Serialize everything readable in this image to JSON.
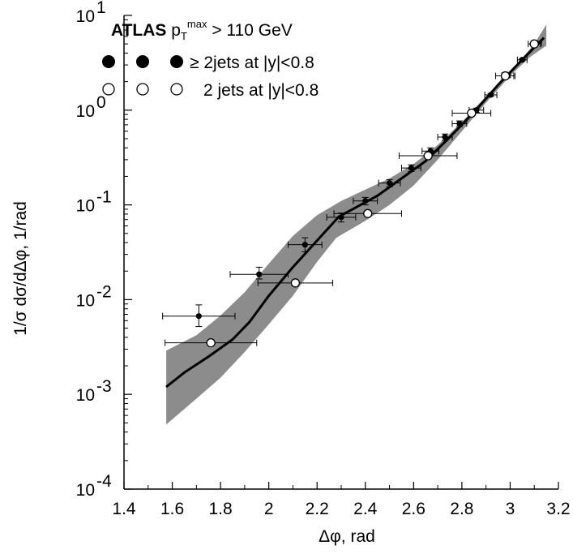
{
  "chart_data": {
    "type": "scatter",
    "x_axis": {
      "label": "Δφ, rad",
      "range": [
        1.4,
        3.2
      ],
      "ticks": [
        "1.4",
        "1.6",
        "1.8",
        "2",
        "2.2",
        "2.4",
        "2.6",
        "2.8",
        "3",
        "3.2"
      ]
    },
    "y_axis": {
      "label": "1/σ dσ/dΔφ, 1/rad",
      "scale": "log",
      "range": [
        0.0001,
        10
      ],
      "ticks": [
        {
          "base": "10",
          "exp": "1"
        },
        {
          "base": "10",
          "exp": "0"
        },
        {
          "base": "10",
          "exp": "-1"
        },
        {
          "base": "10",
          "exp": "-2"
        },
        {
          "base": "10",
          "exp": "-3"
        },
        {
          "base": "10",
          "exp": "-4"
        }
      ]
    },
    "legend": {
      "title_bold": "ATLAS",
      "title_text": "p",
      "title_sub": "T",
      "title_sup": "max",
      "title_rest": " > 110 GeV",
      "entries": [
        {
          "symbol": "filled-circle",
          "label": "≥ 2jets at |y|<0.8"
        },
        {
          "symbol": "open-circle",
          "label": "2 jets at |y|<0.8"
        }
      ]
    },
    "series": [
      {
        "name": "≥ 2jets at |y|<0.8",
        "marker": "filled",
        "points": [
          {
            "x": 1.71,
            "y": 0.0067,
            "xerr": 0.15,
            "ylo": 0.0052,
            "yhi": 0.0088
          },
          {
            "x": 1.96,
            "y": 0.0185,
            "xerr": 0.12,
            "ylo": 0.0165,
            "yhi": 0.022
          },
          {
            "x": 2.15,
            "y": 0.038,
            "xerr": 0.07,
            "ylo": 0.032,
            "yhi": 0.045
          },
          {
            "x": 2.3,
            "y": 0.074,
            "xerr": 0.06,
            "ylo": 0.066,
            "yhi": 0.082
          },
          {
            "x": 2.4,
            "y": 0.11,
            "xerr": 0.05,
            "ylo": 0.1,
            "yhi": 0.12
          },
          {
            "x": 2.5,
            "y": 0.17,
            "xerr": 0.045,
            "ylo": 0.155,
            "yhi": 0.185
          },
          {
            "x": 2.59,
            "y": 0.245,
            "xerr": 0.04,
            "ylo": 0.225,
            "yhi": 0.265
          },
          {
            "x": 2.67,
            "y": 0.37,
            "xerr": 0.035,
            "ylo": 0.34,
            "yhi": 0.4
          },
          {
            "x": 2.73,
            "y": 0.52,
            "xerr": 0.03,
            "ylo": 0.48,
            "yhi": 0.56
          },
          {
            "x": 2.79,
            "y": 0.72,
            "xerr": 0.03,
            "ylo": 0.67,
            "yhi": 0.77
          },
          {
            "x": 2.86,
            "y": 1.0,
            "xerr": 0.03,
            "ylo": 0.95,
            "yhi": 1.05
          },
          {
            "x": 2.92,
            "y": 1.45,
            "xerr": 0.025,
            "ylo": 1.4,
            "yhi": 1.5
          },
          {
            "x": 2.99,
            "y": 2.3,
            "xerr": 0.025,
            "ylo": 2.2,
            "yhi": 2.4
          },
          {
            "x": 3.05,
            "y": 3.4,
            "xerr": 0.02,
            "ylo": 3.3,
            "yhi": 3.5
          },
          {
            "x": 3.11,
            "y": 5.1,
            "xerr": 0.02,
            "ylo": 5.0,
            "yhi": 5.2
          }
        ]
      },
      {
        "name": "2 jets at |y|<0.8",
        "marker": "open",
        "points": [
          {
            "x": 1.76,
            "y": 0.0035,
            "xerr": 0.19
          },
          {
            "x": 2.11,
            "y": 0.015,
            "xerr": 0.155
          },
          {
            "x": 2.41,
            "y": 0.081,
            "xerr": 0.14
          },
          {
            "x": 2.66,
            "y": 0.33,
            "xerr": 0.12
          },
          {
            "x": 2.84,
            "y": 0.93,
            "xerr": 0.08
          },
          {
            "x": 2.98,
            "y": 2.3,
            "xerr": 0.04
          },
          {
            "x": 3.1,
            "y": 5.0,
            "xerr": 0.025
          }
        ]
      }
    ],
    "theory_curve": [
      {
        "x": 1.575,
        "y": 0.0012
      },
      {
        "x": 1.65,
        "y": 0.0017
      },
      {
        "x": 1.75,
        "y": 0.0025
      },
      {
        "x": 1.85,
        "y": 0.0038
      },
      {
        "x": 1.92,
        "y": 0.0058
      },
      {
        "x": 2.0,
        "y": 0.011
      },
      {
        "x": 2.1,
        "y": 0.022
      },
      {
        "x": 2.2,
        "y": 0.042
      },
      {
        "x": 2.29,
        "y": 0.075
      },
      {
        "x": 2.38,
        "y": 0.1
      },
      {
        "x": 2.45,
        "y": 0.125
      },
      {
        "x": 2.55,
        "y": 0.19
      },
      {
        "x": 2.65,
        "y": 0.29
      },
      {
        "x": 2.75,
        "y": 0.52
      },
      {
        "x": 2.85,
        "y": 0.95
      },
      {
        "x": 2.95,
        "y": 1.85
      },
      {
        "x": 3.05,
        "y": 3.4
      },
      {
        "x": 3.14,
        "y": 5.8
      }
    ],
    "theory_band": {
      "lower": [
        {
          "x": 1.575,
          "y": 0.00048
        },
        {
          "x": 1.7,
          "y": 0.0009
        },
        {
          "x": 1.8,
          "y": 0.0015
        },
        {
          "x": 1.9,
          "y": 0.0028
        },
        {
          "x": 2.0,
          "y": 0.0055
        },
        {
          "x": 2.1,
          "y": 0.011
        },
        {
          "x": 2.2,
          "y": 0.025
        },
        {
          "x": 2.28,
          "y": 0.045
        },
        {
          "x": 2.4,
          "y": 0.068
        },
        {
          "x": 2.5,
          "y": 0.1
        },
        {
          "x": 2.6,
          "y": 0.16
        },
        {
          "x": 2.7,
          "y": 0.3
        },
        {
          "x": 2.8,
          "y": 0.6
        },
        {
          "x": 2.9,
          "y": 1.2
        },
        {
          "x": 3.0,
          "y": 2.3
        },
        {
          "x": 3.08,
          "y": 3.6
        },
        {
          "x": 3.15,
          "y": 4.8
        }
      ],
      "upper": [
        {
          "x": 1.575,
          "y": 0.0029
        },
        {
          "x": 1.7,
          "y": 0.0042
        },
        {
          "x": 1.8,
          "y": 0.0068
        },
        {
          "x": 1.9,
          "y": 0.012
        },
        {
          "x": 2.0,
          "y": 0.024
        },
        {
          "x": 2.1,
          "y": 0.047
        },
        {
          "x": 2.2,
          "y": 0.078
        },
        {
          "x": 2.3,
          "y": 0.11
        },
        {
          "x": 2.4,
          "y": 0.145
        },
        {
          "x": 2.5,
          "y": 0.19
        },
        {
          "x": 2.6,
          "y": 0.27
        },
        {
          "x": 2.7,
          "y": 0.43
        },
        {
          "x": 2.8,
          "y": 0.75
        },
        {
          "x": 2.9,
          "y": 1.4
        },
        {
          "x": 3.0,
          "y": 2.5
        },
        {
          "x": 3.1,
          "y": 5.0
        },
        {
          "x": 3.15,
          "y": 8.0
        }
      ]
    },
    "colors": {
      "band": "#8c8c8c",
      "curve": "#000000",
      "marker": "#000000"
    }
  }
}
